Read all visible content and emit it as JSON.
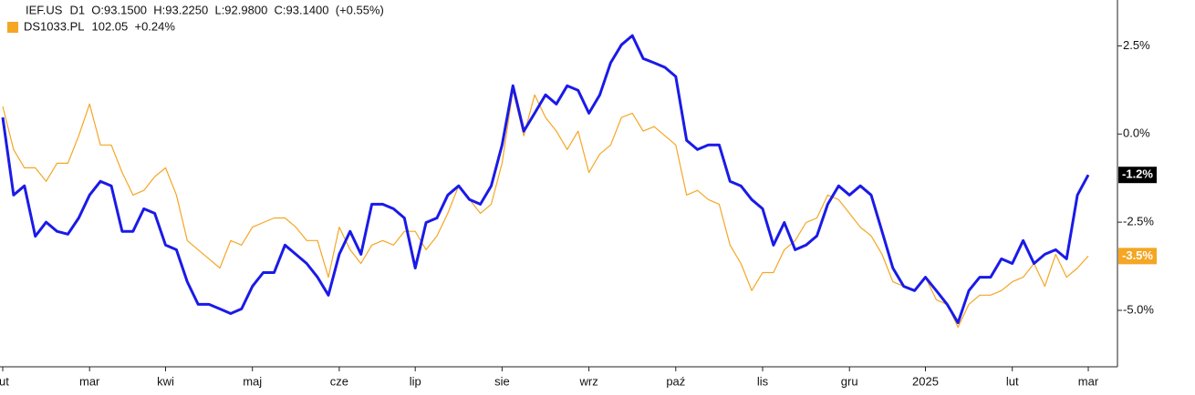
{
  "chart_data": {
    "type": "line",
    "categories": [
      "lut",
      null,
      null,
      null,
      null,
      null,
      null,
      null,
      "mar",
      null,
      null,
      null,
      null,
      null,
      null,
      "kwi",
      null,
      null,
      null,
      null,
      null,
      null,
      null,
      "maj",
      null,
      null,
      null,
      null,
      null,
      null,
      null,
      "cze",
      null,
      null,
      null,
      null,
      null,
      null,
      "lip",
      null,
      null,
      null,
      null,
      null,
      null,
      null,
      "sie",
      null,
      null,
      null,
      null,
      null,
      null,
      null,
      "wrz",
      null,
      null,
      null,
      null,
      null,
      null,
      null,
      "paź",
      null,
      null,
      null,
      null,
      null,
      null,
      null,
      "lis",
      null,
      null,
      null,
      null,
      null,
      null,
      null,
      "gru",
      null,
      null,
      null,
      null,
      null,
      null,
      "2025",
      null,
      null,
      null,
      null,
      null,
      null,
      null,
      "lut",
      null,
      null,
      null,
      null,
      null,
      null,
      "mar"
    ],
    "series": [
      {
        "name": "IEF.US",
        "info": "D1  O:93.1500  H:93.2250  L:92.9800  C:93.1400  (+0.55%)",
        "color": "#1a1ae8",
        "end_label": "-1.2%",
        "end_label_color": "#000000",
        "values": [
          0.47,
          -1.73,
          -1.47,
          -2.9,
          -2.5,
          -2.76,
          -2.84,
          -2.38,
          -1.73,
          -1.34,
          -1.47,
          -2.76,
          -2.76,
          -2.12,
          -2.25,
          -3.15,
          -3.28,
          -4.19,
          -4.83,
          -4.83,
          -4.96,
          -5.09,
          -4.96,
          -4.32,
          -3.93,
          -3.93,
          -3.15,
          -3.41,
          -3.67,
          -4.06,
          -4.57,
          -3.41,
          -2.76,
          -3.41,
          -1.99,
          -1.99,
          -2.12,
          -2.38,
          -3.8,
          -2.51,
          -2.38,
          -1.73,
          -1.47,
          -1.86,
          -1.99,
          -1.47,
          -0.31,
          1.37,
          0.08,
          0.59,
          1.11,
          0.85,
          1.37,
          1.24,
          0.59,
          1.11,
          2.02,
          2.53,
          2.79,
          2.14,
          2.02,
          1.89,
          1.63,
          -0.18,
          -0.44,
          -0.31,
          -0.31,
          -1.34,
          -1.47,
          -1.86,
          -2.12,
          -3.15,
          -2.51,
          -3.28,
          -3.15,
          -2.89,
          -1.99,
          -1.47,
          -1.73,
          -1.47,
          -1.73,
          -2.76,
          -3.8,
          -4.32,
          -4.44,
          -4.06,
          -4.44,
          -4.83,
          -5.35,
          -4.44,
          -4.06,
          -4.06,
          -3.54,
          -3.67,
          -3.02,
          -3.67,
          -3.41,
          -3.28,
          -3.54,
          -1.73,
          -1.16
        ]
      },
      {
        "name": "DS1033.PL",
        "info": "102.05  +0.24%",
        "color": "#f5a623",
        "end_label": "-3.5%",
        "end_label_color": "#f5a623",
        "values": [
          0.78,
          -0.44,
          -0.96,
          -0.96,
          -1.34,
          -0.83,
          -0.83,
          -0.05,
          0.85,
          -0.31,
          -0.31,
          -1.09,
          -1.73,
          -1.6,
          -1.21,
          -0.96,
          -1.73,
          -3.02,
          -3.28,
          -3.54,
          -3.8,
          -3.02,
          -3.15,
          -2.64,
          -2.51,
          -2.38,
          -2.38,
          -2.64,
          -3.02,
          -3.02,
          -4.06,
          -2.64,
          -3.28,
          -3.67,
          -3.15,
          -3.02,
          -3.15,
          -2.76,
          -2.76,
          -3.28,
          -2.89,
          -2.25,
          -1.47,
          -1.86,
          -2.25,
          -1.99,
          -0.83,
          1.24,
          -0.05,
          1.11,
          0.47,
          0.08,
          -0.44,
          0.08,
          -1.09,
          -0.57,
          -0.31,
          0.47,
          0.59,
          0.08,
          0.21,
          -0.05,
          -0.31,
          -1.73,
          -1.6,
          -1.86,
          -1.99,
          -3.15,
          -3.67,
          -4.44,
          -3.93,
          -3.93,
          -3.28,
          -3.02,
          -2.51,
          -2.38,
          -1.73,
          -1.86,
          -2.25,
          -2.64,
          -2.89,
          -3.41,
          -4.19,
          -4.32,
          -4.44,
          -4.06,
          -4.7,
          -4.83,
          -5.48,
          -4.83,
          -4.57,
          -4.57,
          -4.44,
          -4.19,
          -4.06,
          -3.67,
          -4.32,
          -3.41,
          -4.06,
          -3.8,
          -3.46
        ]
      }
    ],
    "ylim": [
      -6.6,
      3.8
    ],
    "yticks": [
      {
        "value": 2.5,
        "label": "2.5%"
      },
      {
        "value": 0,
        "label": "0.0%"
      },
      {
        "value": -2.5,
        "label": "-2.5%"
      },
      {
        "value": -5,
        "label": "-5.0%"
      }
    ],
    "grid": false
  }
}
